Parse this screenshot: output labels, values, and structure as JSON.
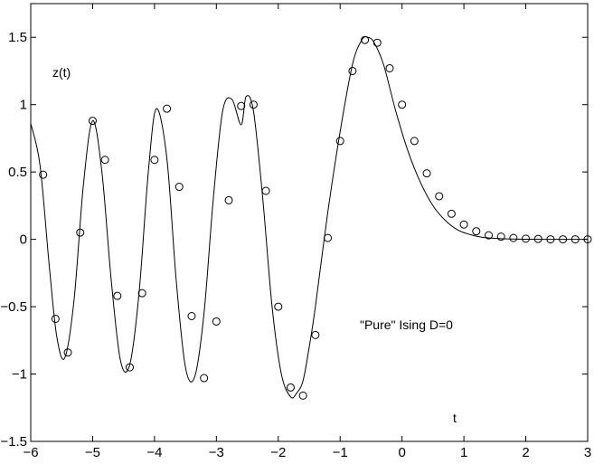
{
  "chart_data": {
    "type": "line",
    "xlim": [
      -6,
      3
    ],
    "ylim": [
      -1.5,
      1.75
    ],
    "xticks": [
      -6,
      -5,
      -4,
      -3,
      -2,
      -1,
      0,
      1,
      2,
      3
    ],
    "yticks": [
      -1.5,
      -1,
      -0.5,
      0,
      0.5,
      1,
      1.5
    ],
    "xtick_labels": [
      "−6",
      "−5",
      "−4",
      "−3",
      "−2",
      "−1",
      "0",
      "1",
      "2",
      "3"
    ],
    "ytick_labels": [
      "−1.5",
      "−1",
      "−0.5",
      "0",
      "0.5",
      "1",
      "1.5"
    ],
    "grid": false,
    "annotations": {
      "ylabel": "z(t)",
      "xlabel": "t",
      "note": "\"Pure\" Ising D=0"
    },
    "series": [
      {
        "style": "line",
        "x": [
          -6.0,
          -5.85,
          -5.7,
          -5.58,
          -5.45,
          -5.3,
          -5.15,
          -5.0,
          -4.85,
          -4.7,
          -4.55,
          -4.4,
          -4.25,
          -4.1,
          -3.97,
          -3.8,
          -3.65,
          -3.5,
          -3.35,
          -3.2,
          -3.05,
          -2.9,
          -2.75,
          -2.6,
          -2.52,
          -2.4,
          -2.25,
          -2.1,
          -1.95,
          -1.8,
          -1.7,
          -1.6,
          -1.5,
          -1.4,
          -1.2,
          -1.0,
          -0.8,
          -0.65,
          -0.55,
          -0.45,
          -0.3,
          -0.1,
          0.1,
          0.3,
          0.5,
          0.7,
          0.9,
          1.1,
          1.3,
          1.6,
          2.0,
          2.5,
          3.0
        ],
        "y": [
          0.86,
          0.55,
          -0.2,
          -0.72,
          -0.88,
          -0.45,
          0.4,
          0.88,
          0.5,
          -0.3,
          -0.9,
          -0.93,
          -0.4,
          0.5,
          0.97,
          0.6,
          -0.3,
          -0.95,
          -1.02,
          -0.55,
          0.3,
          0.95,
          1.04,
          0.85,
          1.06,
          0.95,
          0.3,
          -0.5,
          -1.0,
          -1.17,
          -1.14,
          -1.05,
          -0.8,
          -0.5,
          0.2,
          0.8,
          1.3,
          1.48,
          1.5,
          1.46,
          1.3,
          0.95,
          0.65,
          0.42,
          0.25,
          0.14,
          0.07,
          0.035,
          0.015,
          0.005,
          0.001,
          0.0,
          0.0
        ]
      },
      {
        "style": "markers",
        "marker": "circle",
        "x": [
          -5.8,
          -5.6,
          -5.4,
          -5.2,
          -5.0,
          -4.8,
          -4.6,
          -4.4,
          -4.2,
          -4.0,
          -3.8,
          -3.6,
          -3.4,
          -3.2,
          -3.0,
          -2.8,
          -2.6,
          -2.4,
          -2.2,
          -2.0,
          -1.8,
          -1.6,
          -1.4,
          -1.2,
          -1.0,
          -0.8,
          -0.6,
          -0.4,
          -0.2,
          0.0,
          0.2,
          0.4,
          0.6,
          0.8,
          1.0,
          1.2,
          1.4,
          1.6,
          1.8,
          2.0,
          2.2,
          2.4,
          2.6,
          2.8,
          3.0
        ],
        "y": [
          0.48,
          -0.59,
          -0.84,
          0.05,
          0.88,
          0.59,
          -0.42,
          -0.95,
          -0.4,
          0.59,
          0.97,
          0.39,
          -0.57,
          -1.03,
          -0.61,
          0.29,
          0.99,
          1.0,
          0.36,
          -0.5,
          -1.1,
          -1.16,
          -0.71,
          0.01,
          0.73,
          1.25,
          1.48,
          1.46,
          1.27,
          1.0,
          0.73,
          0.49,
          0.32,
          0.19,
          0.11,
          0.06,
          0.03,
          0.02,
          0.01,
          0.005,
          0.003,
          0.0,
          0.0,
          0.0,
          0.0
        ]
      }
    ]
  }
}
